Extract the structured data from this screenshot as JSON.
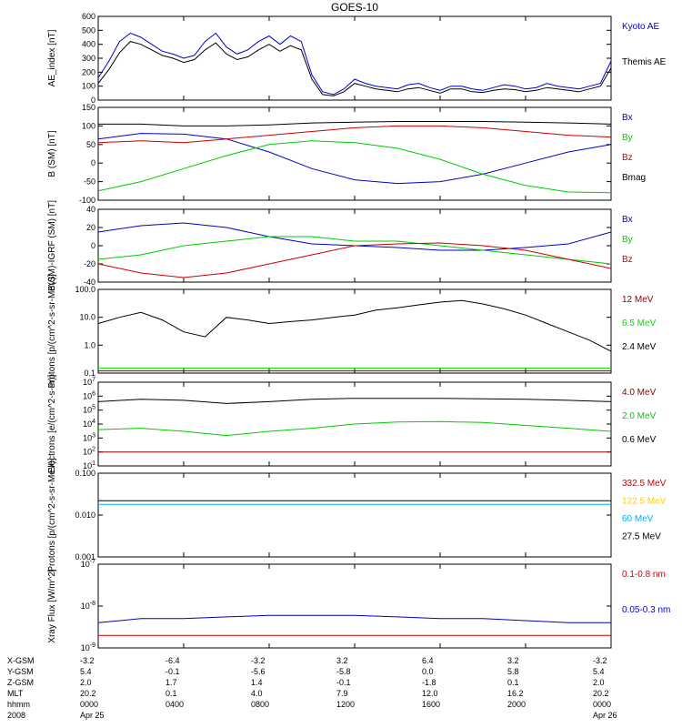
{
  "title": "GOES-10",
  "chart_data": [
    {
      "type": "line",
      "ylabel": "AE_index [nT]",
      "ylim": [
        0,
        600
      ],
      "yticks": [
        "0",
        "100",
        "200",
        "300",
        "400",
        "500",
        "600"
      ],
      "legend_placement": "right",
      "series": [
        {
          "name": "Kyoto AE",
          "color": "#0000cc",
          "x": [
            0,
            0.5,
            1,
            1.5,
            2,
            2.5,
            3,
            3.5,
            4,
            4.5,
            5,
            5.5,
            6,
            6.5,
            7,
            7.5,
            8,
            8.5,
            9,
            9.5,
            10,
            10.5,
            11,
            11.5,
            12,
            12.5,
            13,
            13.5,
            14,
            14.5,
            15,
            15.5,
            16,
            16.5,
            17,
            17.5,
            18,
            18.5,
            19,
            19.5,
            20,
            20.5,
            21,
            21.5,
            22,
            22.5,
            23,
            23.5,
            24
          ],
          "y": [
            160,
            280,
            420,
            480,
            450,
            400,
            350,
            330,
            300,
            320,
            420,
            480,
            380,
            330,
            360,
            420,
            460,
            400,
            460,
            420,
            180,
            60,
            40,
            80,
            150,
            120,
            100,
            90,
            80,
            110,
            120,
            90,
            70,
            100,
            100,
            80,
            70,
            90,
            110,
            100,
            80,
            90,
            120,
            100,
            90,
            80,
            100,
            120,
            280
          ]
        },
        {
          "name": "Themis AE",
          "color": "#000000",
          "x": [
            0,
            0.5,
            1,
            1.5,
            2,
            2.5,
            3,
            3.5,
            4,
            4.5,
            5,
            5.5,
            6,
            6.5,
            7,
            7.5,
            8,
            8.5,
            9,
            9.5,
            10,
            10.5,
            11,
            11.5,
            12,
            12.5,
            13,
            13.5,
            14,
            14.5,
            15,
            15.5,
            16,
            16.5,
            17,
            17.5,
            18,
            18.5,
            19,
            19.5,
            20,
            20.5,
            21,
            21.5,
            22,
            22.5,
            23,
            23.5,
            24
          ],
          "y": [
            120,
            220,
            340,
            420,
            400,
            360,
            320,
            300,
            270,
            290,
            360,
            410,
            330,
            290,
            310,
            360,
            400,
            350,
            390,
            360,
            150,
            40,
            30,
            60,
            120,
            100,
            80,
            70,
            60,
            80,
            90,
            70,
            50,
            80,
            80,
            60,
            55,
            70,
            80,
            75,
            60,
            70,
            90,
            80,
            70,
            60,
            80,
            100,
            230
          ]
        }
      ]
    },
    {
      "type": "line",
      "ylabel": "B (SM) [nT]",
      "ylim": [
        -100,
        150
      ],
      "yticks": [
        "-100",
        "-50",
        "0",
        "50",
        "100",
        "150"
      ],
      "series": [
        {
          "name": "Bx",
          "color": "#0000cc",
          "x": [
            0,
            2,
            4,
            6,
            8,
            10,
            12,
            14,
            16,
            18,
            20,
            22,
            24
          ],
          "y": [
            65,
            80,
            78,
            65,
            30,
            -15,
            -45,
            -55,
            -50,
            -30,
            0,
            30,
            50
          ]
        },
        {
          "name": "By",
          "color": "#00cc00",
          "x": [
            0,
            2,
            4,
            6,
            8,
            10,
            12,
            14,
            16,
            18,
            20,
            22,
            24
          ],
          "y": [
            -75,
            -50,
            -15,
            20,
            50,
            60,
            55,
            40,
            10,
            -30,
            -60,
            -78,
            -80
          ]
        },
        {
          "name": "Bz",
          "color": "#cc0000",
          "x": [
            0,
            2,
            4,
            6,
            8,
            10,
            12,
            14,
            16,
            18,
            20,
            22,
            24
          ],
          "y": [
            55,
            60,
            55,
            65,
            75,
            85,
            95,
            100,
            100,
            95,
            85,
            75,
            70
          ]
        },
        {
          "name": "Bmag",
          "color": "#000000",
          "x": [
            0,
            2,
            4,
            6,
            8,
            10,
            12,
            14,
            16,
            18,
            20,
            22,
            24
          ],
          "y": [
            105,
            105,
            100,
            100,
            103,
            108,
            110,
            112,
            112,
            112,
            110,
            108,
            105
          ]
        }
      ]
    },
    {
      "type": "line",
      "ylabel": "B(SM)-IGRF (SM) [nT]",
      "ylim": [
        -40,
        40
      ],
      "yticks": [
        "-40",
        "-20",
        "0",
        "20",
        "40"
      ],
      "series": [
        {
          "name": "Bx",
          "color": "#0000cc",
          "x": [
            0,
            2,
            4,
            6,
            8,
            10,
            12,
            14,
            16,
            18,
            20,
            22,
            24
          ],
          "y": [
            15,
            22,
            25,
            20,
            10,
            2,
            0,
            -2,
            -5,
            -5,
            -2,
            2,
            15
          ]
        },
        {
          "name": "By",
          "color": "#00cc00",
          "x": [
            0,
            2,
            4,
            6,
            8,
            10,
            12,
            14,
            16,
            18,
            20,
            22,
            24
          ],
          "y": [
            -15,
            -10,
            0,
            5,
            10,
            10,
            5,
            5,
            0,
            -5,
            -10,
            -15,
            -20
          ]
        },
        {
          "name": "Bz",
          "color": "#cc0000",
          "x": [
            0,
            2,
            4,
            6,
            8,
            10,
            12,
            14,
            16,
            18,
            20,
            22,
            24
          ],
          "y": [
            -20,
            -30,
            -35,
            -30,
            -20,
            -10,
            0,
            2,
            3,
            0,
            -5,
            -15,
            -25
          ]
        }
      ]
    },
    {
      "type": "line",
      "ylabel": "Protons [p/(cm^2-s-sr-MeV)]",
      "yscale": "log",
      "ylim": [
        0.1,
        100
      ],
      "yticks": [
        "0.1",
        "1.0",
        "10.0",
        "100.0"
      ],
      "series": [
        {
          "name": "12 MeV",
          "color": "#880000",
          "x": [
            0,
            4,
            8,
            12,
            16,
            20,
            24
          ],
          "y": [
            0.12,
            0.12,
            0.12,
            0.12,
            0.12,
            0.12,
            0.12
          ]
        },
        {
          "name": "6.5 MeV",
          "color": "#00dd00",
          "x": [
            0,
            4,
            8,
            12,
            16,
            20,
            24
          ],
          "y": [
            0.15,
            0.15,
            0.15,
            0.15,
            0.15,
            0.15,
            0.15
          ]
        },
        {
          "name": "2.4 MeV",
          "color": "#000000",
          "x": [
            0,
            1,
            2,
            3,
            4,
            5,
            6,
            7,
            8,
            9,
            10,
            11,
            12,
            13,
            14,
            15,
            16,
            17,
            18,
            19,
            20,
            21,
            22,
            23,
            24
          ],
          "y": [
            6,
            10,
            15,
            8,
            3,
            2,
            10,
            8,
            6,
            7,
            8,
            10,
            12,
            18,
            22,
            28,
            35,
            40,
            30,
            20,
            12,
            6,
            3,
            1.5,
            0.6
          ]
        }
      ]
    },
    {
      "type": "line",
      "ylabel": "Electrons [e/(cm^2-s-sr)]",
      "yscale": "log",
      "ylim": [
        10,
        10000000
      ],
      "yticks": [
        "10^1",
        "10^2",
        "10^3",
        "10^4",
        "10^5",
        "10^6",
        "10^7"
      ],
      "series": [
        {
          "name": "4.0 MeV",
          "color": "#880000",
          "x": [
            0,
            4,
            8,
            12,
            16,
            20,
            24
          ],
          "y": [
            100,
            100,
            100,
            100,
            100,
            100,
            100
          ]
        },
        {
          "name": "2.0 MeV",
          "color": "#00cc00",
          "x": [
            0,
            2,
            4,
            6,
            8,
            10,
            12,
            14,
            16,
            18,
            20,
            22,
            24
          ],
          "y": [
            4000,
            5000,
            3000,
            1500,
            3000,
            5000,
            10000,
            14000,
            15000,
            13000,
            8000,
            5000,
            3000
          ]
        },
        {
          "name": "0.6 MeV",
          "color": "#000000",
          "x": [
            0,
            2,
            4,
            6,
            8,
            10,
            12,
            14,
            16,
            18,
            20,
            22,
            24
          ],
          "y": [
            400000,
            600000,
            500000,
            300000,
            400000,
            600000,
            700000,
            700000,
            700000,
            650000,
            600000,
            500000,
            400000
          ]
        }
      ]
    },
    {
      "type": "line",
      "ylabel": "Protons [p/(cm^2-s-sr-MeV)]",
      "yscale": "log",
      "ylim": [
        0.001,
        0.1
      ],
      "yticks": [
        "0.001",
        "0.010",
        "0.100"
      ],
      "series": [
        {
          "name": "332.5 MeV",
          "color": "#cc0000",
          "x": [],
          "y": []
        },
        {
          "name": "122.5 MeV",
          "color": "#ffcc00",
          "x": [],
          "y": []
        },
        {
          "name": "60 MeV",
          "color": "#00aaff",
          "x": [
            0,
            24
          ],
          "y": [
            0.018,
            0.018
          ]
        },
        {
          "name": "27.5 MeV",
          "color": "#000000",
          "x": [
            0,
            24
          ],
          "y": [
            0.022,
            0.022
          ]
        }
      ]
    },
    {
      "type": "line",
      "ylabel": "Xray Flux [W/m^2]",
      "yscale": "log",
      "ylim": [
        1e-09,
        1e-07
      ],
      "yticks": [
        "10^-9",
        "10^-8",
        "10^-7"
      ],
      "series": [
        {
          "name": "0.1-0.8 nm",
          "color": "#cc0000",
          "x": [
            0,
            24
          ],
          "y": [
            2e-09,
            2e-09
          ]
        },
        {
          "name": "0.05-0.3 nm",
          "color": "#0000cc",
          "x": [
            0,
            2,
            4,
            6,
            8,
            10,
            12,
            14,
            16,
            18,
            20,
            22,
            24
          ],
          "y": [
            4e-09,
            5e-09,
            5e-09,
            5.5e-09,
            6e-09,
            6e-09,
            6e-09,
            5.5e-09,
            5e-09,
            5e-09,
            4.5e-09,
            4e-09,
            4e-09
          ]
        }
      ]
    }
  ],
  "x_axis": {
    "row_labels": [
      "X-GSM",
      "Y-GSM",
      "Z-GSM",
      "MLT",
      "hhmm",
      "2008"
    ],
    "ticks": [
      {
        "xgsm": "-3.2",
        "ygsm": "5.4",
        "zgsm": "2.0",
        "mlt": "20.2",
        "hhmm": "0000",
        "date": "Apr 25"
      },
      {
        "xgsm": "-6.4",
        "ygsm": "-0.1",
        "zgsm": "1.7",
        "mlt": "0.1",
        "hhmm": "0400",
        "date": ""
      },
      {
        "xgsm": "-3.2",
        "ygsm": "-5.6",
        "zgsm": "1.4",
        "mlt": "4.0",
        "hhmm": "0800",
        "date": ""
      },
      {
        "xgsm": "3.2",
        "ygsm": "-5.8",
        "zgsm": "-0.1",
        "mlt": "7.9",
        "hhmm": "1200",
        "date": ""
      },
      {
        "xgsm": "6.4",
        "ygsm": "0.0",
        "zgsm": "-1.8",
        "mlt": "12.0",
        "hhmm": "1600",
        "date": ""
      },
      {
        "xgsm": "3.2",
        "ygsm": "5.8",
        "zgsm": "0.1",
        "mlt": "16.2",
        "hhmm": "2000",
        "date": ""
      },
      {
        "xgsm": "-3.2",
        "ygsm": "5.4",
        "zgsm": "2.0",
        "mlt": "20.2",
        "hhmm": "0000",
        "date": "Apr 26"
      }
    ]
  }
}
